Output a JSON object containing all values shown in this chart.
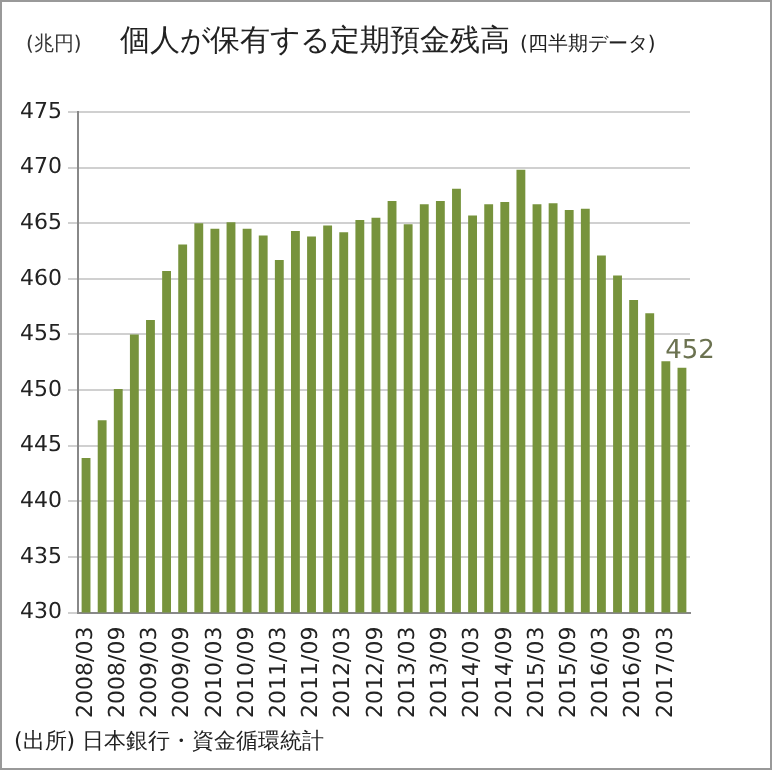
{
  "chart_data": {
    "type": "bar",
    "title": "個人が保有する定期預金残高",
    "subtitle": "(四半期データ)",
    "ylabel": "(兆円)",
    "annotations": [
      "(出所) 日本銀行・資金循環統計"
    ],
    "categories": [
      "2008/03",
      null,
      "2008/09",
      null,
      "2009/03",
      null,
      "2009/09",
      null,
      "2010/03",
      null,
      "2010/09",
      null,
      "2011/03",
      null,
      "2011/09",
      null,
      "2012/03",
      null,
      "2012/09",
      null,
      "2013/03",
      null,
      "2013/09",
      null,
      "2014/03",
      null,
      "2014/09",
      null,
      "2015/03",
      null,
      "2015/09",
      null,
      "2016/03",
      null,
      "2016/09",
      null,
      "2017/03",
      null
    ],
    "values": [
      443.9,
      447.3,
      450.1,
      455.0,
      456.3,
      460.7,
      463.1,
      465.0,
      464.5,
      465.1,
      464.5,
      463.9,
      461.7,
      464.3,
      463.8,
      464.8,
      464.2,
      465.3,
      465.5,
      467.0,
      464.9,
      466.7,
      467.0,
      468.1,
      465.7,
      466.7,
      466.9,
      469.8,
      466.7,
      466.8,
      466.2,
      466.3,
      462.1,
      460.3,
      458.1,
      456.9,
      452.6,
      452
    ],
    "value_labels": [
      null,
      null,
      null,
      null,
      null,
      null,
      null,
      null,
      null,
      null,
      null,
      null,
      null,
      null,
      null,
      null,
      null,
      null,
      null,
      null,
      null,
      null,
      null,
      null,
      null,
      null,
      null,
      null,
      null,
      null,
      null,
      null,
      null,
      null,
      null,
      null,
      null,
      "452"
    ],
    "color": "#77933c",
    "ylim": [
      430,
      475
    ],
    "yticks": [
      430,
      435,
      440,
      445,
      450,
      455,
      460,
      465,
      470,
      475
    ],
    "grid": "y"
  }
}
